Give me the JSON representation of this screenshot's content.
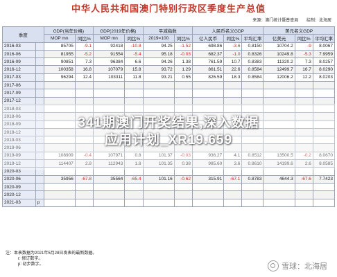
{
  "title": "中华人民共和国澳门特别行政区季度生产总值",
  "source": {
    "source_label": "来源：澳门统计暨普查局",
    "author_label": "绘制：北海居"
  },
  "headers": {
    "quarter": "季度",
    "gdp_current": "GDP(当年价格)",
    "gdp_2019": "GDP(2019年价格)",
    "deflator": "平减指数",
    "rmb_gdp": "人民币名义GDP",
    "usd_gdp": "美元名义GDP"
  },
  "subheaders": {
    "mop_mn": "MOP mn",
    "yoy": "同比%",
    "base_index": "2019=100",
    "yi_rmb": "亿人民币",
    "avg_fx": "平均汇率",
    "yi_usd": "亿美元"
  },
  "rows": [
    {
      "q": "2016-03",
      "p": "",
      "c": [
        "85705",
        "-9.1",
        "92418",
        "-10.8",
        "94.25",
        "-1.52",
        "698.86",
        "-3.6",
        "0.8150",
        "10704.2",
        "-9",
        "8.0067"
      ]
    },
    {
      "q": "2016-06",
      "p": "",
      "c": [
        "81955",
        "-5.2",
        "91554",
        "-5.4",
        "95.18",
        "-0.03",
        "682.37",
        "-1.0",
        "0.8326",
        "10249.8",
        "-5.3",
        "7.9959"
      ]
    },
    {
      "q": "2016-09",
      "p": "",
      "c": [
        "90851",
        "7.3",
        "96384",
        "6.6",
        "94.26",
        "1.38",
        "761.59",
        "10.7",
        "0.8383",
        "11320.2",
        "7.3",
        "8.0257"
      ]
    },
    {
      "q": "2016-12",
      "p": "",
      "c": [
        "100358",
        "16.8",
        "107079",
        "15.8",
        "93.72",
        "1.29",
        "861.51",
        "22.6",
        "0.8584",
        "12499.7",
        "16.7",
        "8.0290"
      ]
    },
    {
      "q": "2017-03",
      "p": "",
      "c": [
        "96294",
        "12.4",
        "103311",
        "11.8",
        "93.21",
        "0.55",
        "826.59",
        "18.3",
        "0.8584",
        "12006.2",
        "12.2",
        "8.0203"
      ]
    },
    {
      "q": "2017-06",
      "p": "",
      "c": [
        "",
        "",
        "",
        "",
        "",
        "",
        "",
        "",
        "",
        "",
        "",
        ""
      ]
    },
    {
      "q": "2017-09",
      "p": "",
      "c": [
        "",
        "",
        "",
        "",
        "",
        "",
        "",
        "",
        "",
        "",
        "",
        ""
      ]
    },
    {
      "q": "2017-12",
      "p": "",
      "c": [
        "",
        "",
        "",
        "",
        "",
        "",
        "",
        "",
        "",
        "",
        "",
        ""
      ]
    },
    {
      "q": "2018-03",
      "p": "",
      "c": [
        "",
        "",
        "",
        "",
        "",
        "",
        "",
        "",
        "",
        "",
        "",
        ""
      ]
    },
    {
      "q": "2018-06",
      "p": "",
      "c": [
        "",
        "",
        "",
        "",
        "",
        "",
        "",
        "",
        "",
        "",
        "",
        ""
      ]
    },
    {
      "q": "2018-09",
      "p": "",
      "c": [
        "",
        "",
        "",
        "",
        "",
        "",
        "",
        "",
        "",
        "",
        "",
        ""
      ]
    },
    {
      "q": "2018-12",
      "p": "",
      "c": [
        "",
        "",
        "",
        "",
        "",
        "",
        "",
        "",
        "",
        "",
        "",
        ""
      ]
    },
    {
      "q": "2019-03",
      "p": "",
      "c": [
        "",
        "",
        "",
        "",
        "",
        "",
        "",
        "",
        "",
        "",
        "",
        ""
      ]
    },
    {
      "q": "2019-06",
      "p": "",
      "c": [
        "",
        "",
        "",
        "",
        "",
        "",
        "",
        "",
        "",
        "",
        "",
        ""
      ]
    },
    {
      "q": "2019-09",
      "p": "",
      "c": [
        "108909",
        "-0.4",
        "107971",
        "0.8",
        "101.37",
        "-0.03",
        "936.27",
        "4.1",
        "0.8512",
        "13500.5",
        "-0.2",
        "8.0670"
      ]
    },
    {
      "q": "2019-12",
      "p": "",
      "c": [
        "114407",
        "2.8",
        "112943",
        "1.8",
        "101.35",
        "0.38",
        "985.60",
        "3.6",
        "0.8610",
        "14199.6",
        "2.6",
        "8.0585"
      ]
    },
    {
      "q": "2020-03",
      "p": "",
      "c": [
        "",
        "",
        "",
        "",
        "",
        "",
        "",
        "",
        "",
        "",
        "",
        ""
      ]
    },
    {
      "q": "2020-06",
      "p": "",
      "c": [
        "35956",
        "-67.8",
        "35564",
        "-65.4",
        "101.16",
        "-0.62",
        "315.91",
        "-67.1",
        "0.8783",
        "4644.3",
        "-67.6",
        "7.7423"
      ]
    },
    {
      "q": "2020-09",
      "p": "",
      "c": [
        "",
        "",
        "",
        "",
        "",
        "",
        "",
        "",
        "",
        "",
        "",
        ""
      ]
    },
    {
      "q": "2020-12",
      "p": "",
      "c": [
        "",
        "",
        "",
        "",
        "",
        "",
        "",
        "",
        "",
        "",
        "",
        ""
      ]
    },
    {
      "q": "2021-03",
      "p": "p",
      "c": [
        "",
        "",
        "",
        "",
        "",
        "",
        "",
        "",
        "",
        "",
        "",
        ""
      ]
    }
  ],
  "notes": {
    "line1": "注：本表数据为2021年5月28日发表的最新数据。",
    "line2": "r: 修订数字。",
    "line3": "p: 初步数字。"
  },
  "watermark": {
    "line1": "341期澳门开奖结果,深入数据",
    "line2": "应用计划_XR19.659"
  },
  "logo_text": "雪球：北海居"
}
